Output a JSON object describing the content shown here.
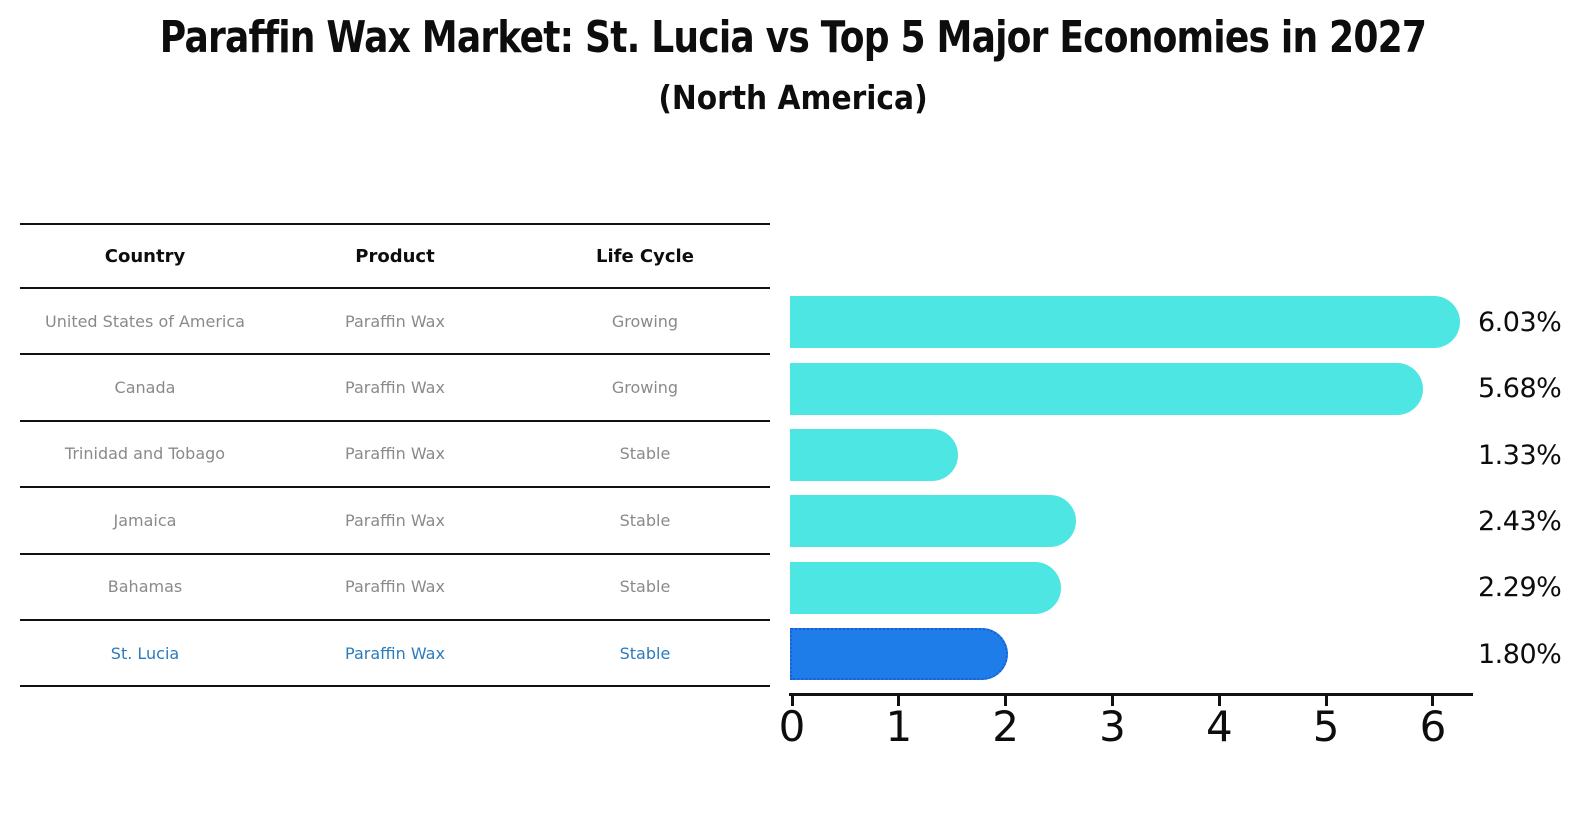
{
  "chart": {
    "title": "Paraffin Wax Market: St. Lucia vs Top 5 Major Economies in 2027",
    "subtitle": "(North America)"
  },
  "table": {
    "headers": [
      "Country",
      "Product",
      "Life Cycle"
    ],
    "rows": [
      {
        "country": "United States of America",
        "product": "Paraffin Wax",
        "life_cycle": "Growing",
        "highlight": false
      },
      {
        "country": "Canada",
        "product": "Paraffin Wax",
        "life_cycle": "Growing",
        "highlight": false
      },
      {
        "country": "Trinidad and Tobago",
        "product": "Paraffin Wax",
        "life_cycle": "Stable",
        "highlight": false
      },
      {
        "country": "Jamaica",
        "product": "Paraffin Wax",
        "life_cycle": "Stable",
        "highlight": false
      },
      {
        "country": "Bahamas",
        "product": "Paraffin Wax",
        "life_cycle": "Stable",
        "highlight": false
      },
      {
        "country": "St. Lucia",
        "product": "Paraffin Wax",
        "life_cycle": "Stable",
        "highlight": true
      }
    ]
  },
  "chart_data": {
    "type": "bar",
    "orientation": "horizontal",
    "title": "Paraffin Wax Market: St. Lucia vs Top 5 Major Economies in 2027",
    "subtitle": "(North America)",
    "categories": [
      "United States of America",
      "Canada",
      "Trinidad and Tobago",
      "Jamaica",
      "Bahamas",
      "St. Lucia"
    ],
    "values": [
      6.03,
      5.68,
      1.33,
      2.43,
      2.29,
      1.8
    ],
    "value_labels": [
      "6.03%",
      "5.68%",
      "1.33%",
      "2.43%",
      "2.29%",
      "1.80%"
    ],
    "xlim": [
      0,
      6.4
    ],
    "xticks": [
      0,
      1,
      2,
      3,
      4,
      5,
      6
    ],
    "grid": false,
    "legend": false,
    "highlight_index": 5,
    "bar_color": "#4de6e3",
    "highlight_bar_color": "#1e7de8",
    "highlight_border_color": "#1c5fd0",
    "highlight_text_color": "#2b7bbd",
    "row_text_color": "#8a8a8a",
    "axis_color": "#111111"
  }
}
